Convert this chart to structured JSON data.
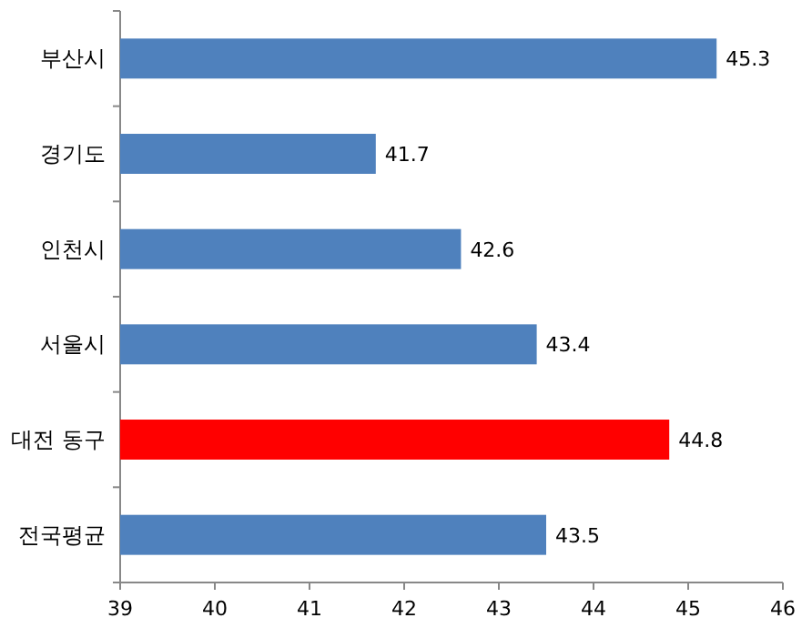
{
  "chart_data": {
    "type": "bar",
    "orientation": "horizontal",
    "categories": [
      "부산시",
      "경기도",
      "인천시",
      "서울시",
      "대전 동구",
      "전국평균"
    ],
    "values": [
      45.3,
      41.7,
      42.6,
      43.4,
      44.8,
      43.5
    ],
    "colors": [
      "#4f81bd",
      "#4f81bd",
      "#4f81bd",
      "#4f81bd",
      "#ff0000",
      "#4f81bd"
    ],
    "xlim": [
      39,
      46
    ],
    "xticks": [
      39,
      40,
      41,
      42,
      43,
      44,
      45,
      46
    ],
    "data_labels": true
  }
}
